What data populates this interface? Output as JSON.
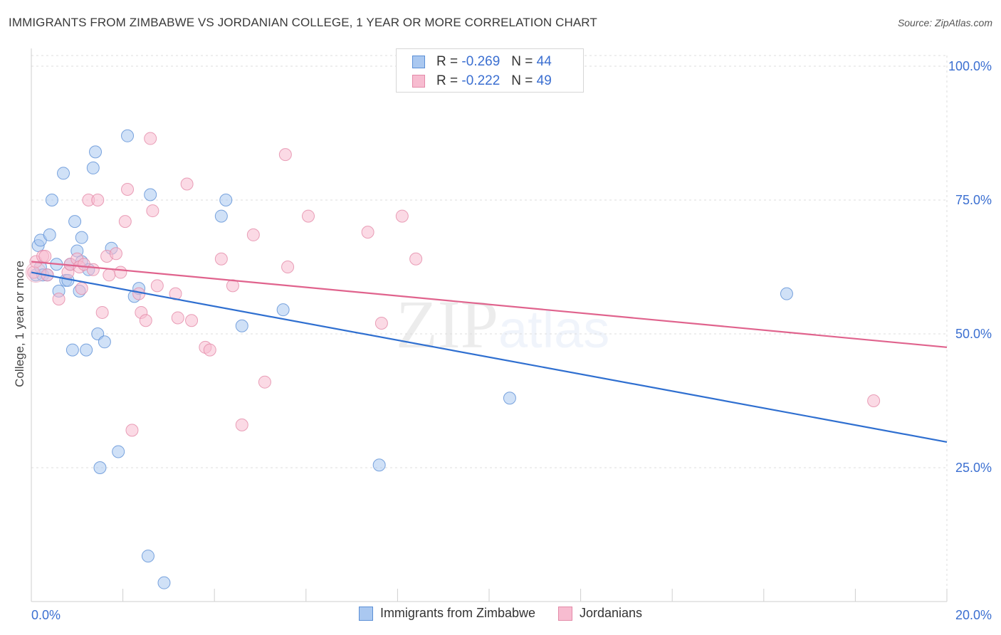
{
  "title": "IMMIGRANTS FROM ZIMBABWE VS JORDANIAN COLLEGE, 1 YEAR OR MORE CORRELATION CHART",
  "source": "Source: ZipAtlas.com",
  "watermark": {
    "zip": "ZIP",
    "atlas": "atlas"
  },
  "legend": {
    "r_label": "R =",
    "n_label": "N =",
    "rows": [
      {
        "r": "-0.269",
        "n": "44"
      },
      {
        "r": "-0.222",
        "n": "49"
      }
    ]
  },
  "bottom_legend": [
    {
      "label": "Immigrants from Zimbabwe"
    },
    {
      "label": "Jordanians"
    }
  ],
  "colors": {
    "blue_fill": "#aac8f0",
    "blue_stroke": "#5b8fd6",
    "blue_line": "#2f6fd0",
    "pink_fill": "#f7bcd0",
    "pink_stroke": "#e38aa8",
    "pink_line": "#e0638d",
    "tick_text": "#3b6fd1",
    "grid": "#dcdcdc"
  },
  "chart_data": {
    "type": "scatter",
    "title": "IMMIGRANTS FROM ZIMBABWE VS JORDANIAN COLLEGE, 1 YEAR OR MORE CORRELATION CHART",
    "xlabel": "",
    "ylabel": "College, 1 year or more",
    "xlim": [
      0,
      20
    ],
    "ylim": [
      0,
      102
    ],
    "x_tick_labels": [
      "0.0%",
      "20.0%"
    ],
    "y_ticks": [
      25,
      50,
      75,
      100
    ],
    "y_tick_labels": [
      "25.0%",
      "50.0%",
      "75.0%",
      "100.0%"
    ],
    "grid": true,
    "legend_position": "top-center",
    "series": [
      {
        "name": "Immigrants from Zimbabwe",
        "points": [
          [
            0.1,
            61.0
          ],
          [
            0.15,
            66.5
          ],
          [
            0.2,
            62.5
          ],
          [
            0.2,
            67.5
          ],
          [
            0.25,
            61.0
          ],
          [
            0.35,
            61.0
          ],
          [
            0.4,
            68.5
          ],
          [
            0.45,
            75.0
          ],
          [
            0.55,
            63.0
          ],
          [
            0.6,
            58.0
          ],
          [
            0.7,
            80.0
          ],
          [
            0.75,
            60.0
          ],
          [
            0.8,
            60.0
          ],
          [
            0.85,
            63.0
          ],
          [
            0.9,
            47.0
          ],
          [
            0.95,
            71.0
          ],
          [
            1.0,
            65.5
          ],
          [
            1.05,
            58.0
          ],
          [
            1.1,
            63.5
          ],
          [
            1.1,
            68.0
          ],
          [
            1.2,
            47.0
          ],
          [
            1.25,
            62.0
          ],
          [
            1.35,
            81.0
          ],
          [
            1.4,
            84.0
          ],
          [
            1.45,
            50.0
          ],
          [
            1.5,
            25.0
          ],
          [
            1.6,
            48.5
          ],
          [
            1.75,
            66.0
          ],
          [
            1.9,
            28.0
          ],
          [
            2.1,
            87.0
          ],
          [
            2.25,
            57.0
          ],
          [
            2.35,
            58.5
          ],
          [
            2.55,
            8.5
          ],
          [
            2.6,
            76.0
          ],
          [
            2.9,
            3.5
          ],
          [
            4.15,
            72.0
          ],
          [
            4.25,
            75.0
          ],
          [
            4.6,
            51.5
          ],
          [
            5.5,
            54.5
          ],
          [
            7.6,
            25.5
          ],
          [
            10.45,
            38.0
          ],
          [
            16.5,
            57.5
          ]
        ]
      },
      {
        "name": "Jordanians",
        "points": [
          [
            0.05,
            61.5
          ],
          [
            0.1,
            63.5
          ],
          [
            0.25,
            64.5
          ],
          [
            0.3,
            64.5
          ],
          [
            0.35,
            61.0
          ],
          [
            0.6,
            56.5
          ],
          [
            0.8,
            61.5
          ],
          [
            0.85,
            63.0
          ],
          [
            1.0,
            64.0
          ],
          [
            1.05,
            62.5
          ],
          [
            1.1,
            58.5
          ],
          [
            1.15,
            63.0
          ],
          [
            1.25,
            75.0
          ],
          [
            1.35,
            62.0
          ],
          [
            1.45,
            75.0
          ],
          [
            1.55,
            54.0
          ],
          [
            1.65,
            64.5
          ],
          [
            1.7,
            61.0
          ],
          [
            1.85,
            65.0
          ],
          [
            1.95,
            61.5
          ],
          [
            2.05,
            71.0
          ],
          [
            2.1,
            77.0
          ],
          [
            2.2,
            32.0
          ],
          [
            2.35,
            57.5
          ],
          [
            2.4,
            54.0
          ],
          [
            2.5,
            52.5
          ],
          [
            2.6,
            86.5
          ],
          [
            2.65,
            73.0
          ],
          [
            2.75,
            59.0
          ],
          [
            3.15,
            57.5
          ],
          [
            3.2,
            53.0
          ],
          [
            3.4,
            78.0
          ],
          [
            3.5,
            52.5
          ],
          [
            3.8,
            47.5
          ],
          [
            3.9,
            47.0
          ],
          [
            4.15,
            64.0
          ],
          [
            4.4,
            59.0
          ],
          [
            4.6,
            33.0
          ],
          [
            4.85,
            68.5
          ],
          [
            5.1,
            41.0
          ],
          [
            5.55,
            83.5
          ],
          [
            5.6,
            62.5
          ],
          [
            6.05,
            72.0
          ],
          [
            7.35,
            69.0
          ],
          [
            7.65,
            52.0
          ],
          [
            8.1,
            72.0
          ],
          [
            8.4,
            64.0
          ],
          [
            18.4,
            37.5
          ]
        ]
      }
    ],
    "trend_lines": [
      {
        "series": "Immigrants from Zimbabwe",
        "x": [
          0,
          20
        ],
        "y": [
          61.5,
          29.8
        ]
      },
      {
        "series": "Jordanians",
        "x": [
          0,
          20
        ],
        "y": [
          63.5,
          47.5
        ]
      }
    ]
  }
}
